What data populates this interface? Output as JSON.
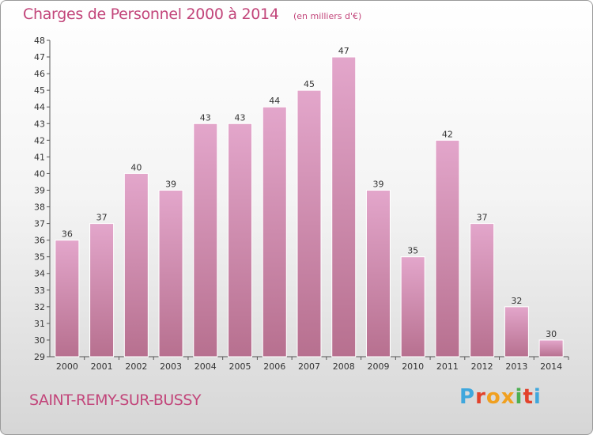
{
  "page": {
    "title": "Charges de Personnel 2000 à 2014",
    "subtitle": "(en milliers d'€)",
    "commune": "SAINT-REMY-SUR-BUSSY",
    "logo_text": "Proxiti"
  },
  "colors": {
    "accent": "#c2457a",
    "bar_top": "#e3a6cb",
    "bar_bottom": "#b7708f",
    "logo_letters": [
      "#3fa7dd",
      "#e2422b",
      "#f0a020",
      "#f0a020",
      "#4caf50",
      "#e2422b",
      "#3fa7dd"
    ]
  },
  "chart_data": {
    "type": "bar",
    "title": "Charges de Personnel 2000 à 2014",
    "subtitle": "(en milliers d'€)",
    "xlabel": "",
    "ylabel": "",
    "categories": [
      "2000",
      "2001",
      "2002",
      "2003",
      "2004",
      "2005",
      "2006",
      "2007",
      "2008",
      "2009",
      "2010",
      "2011",
      "2012",
      "2013",
      "2014"
    ],
    "values": [
      36,
      37,
      40,
      39,
      43,
      43,
      44,
      45,
      47,
      39,
      35,
      42,
      37,
      32,
      30
    ],
    "ylim": [
      29,
      48
    ],
    "yticks": [
      29,
      30,
      31,
      32,
      33,
      34,
      35,
      36,
      37,
      38,
      39,
      40,
      41,
      42,
      43,
      44,
      45,
      46,
      47,
      48
    ],
    "grid": false,
    "legend": "none"
  }
}
